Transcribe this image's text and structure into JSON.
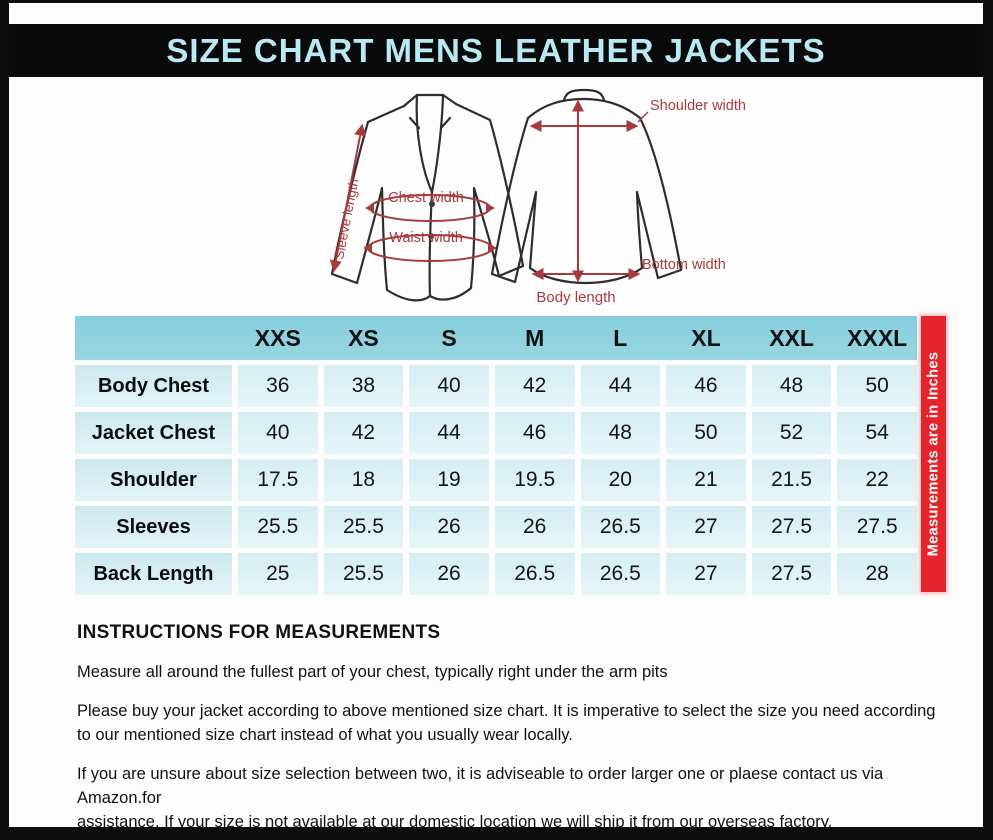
{
  "header": {
    "title": "SIZE CHART MENS LEATHER JACKETS"
  },
  "diagram": {
    "front": {
      "sleeve_label": "Sleeve length",
      "chest_label": "Chest width",
      "waist_label": "Waist width"
    },
    "back": {
      "shoulder_label": "Shoulder width",
      "bottom_label": "Bottom width",
      "body_label": "Body length"
    }
  },
  "chart_data": {
    "type": "table",
    "title": "SIZE CHART MENS LEATHER JACKETS",
    "columns": [
      "",
      "XXS",
      "XS",
      "S",
      "M",
      "L",
      "XL",
      "XXL",
      "XXXL"
    ],
    "rows": [
      {
        "label": "Body Chest",
        "values": [
          "36",
          "38",
          "40",
          "42",
          "44",
          "46",
          "48",
          "50"
        ]
      },
      {
        "label": "Jacket Chest",
        "values": [
          "40",
          "42",
          "44",
          "46",
          "48",
          "50",
          "52",
          "54"
        ]
      },
      {
        "label": "Shoulder",
        "values": [
          "17.5",
          "18",
          "19",
          "19.5",
          "20",
          "21",
          "21.5",
          "22"
        ]
      },
      {
        "label": "Sleeves",
        "values": [
          "25.5",
          "25.5",
          "26",
          "26",
          "26.5",
          "27",
          "27.5",
          "27.5"
        ]
      },
      {
        "label": "Back Length",
        "values": [
          "25",
          "25.5",
          "26",
          "26.5",
          "26.5",
          "27",
          "27.5",
          "28"
        ]
      }
    ],
    "note": "Measurements  are in Inches",
    "units": "inches"
  },
  "instructions": {
    "heading": "INSTRUCTIONS FOR MEASUREMENTS",
    "p1": "Measure all around the fullest part of your chest, typically right under the arm pits",
    "p2": "Please buy your jacket according to above mentioned size chart. It is imperative to select the size you need according\nto our mentioned size chart instead of what you  usually wear locally.",
    "p3": "If you are unsure about size selection between two, it is adviseable to order larger one or plaese contact us via Amazon.for\nassistance. If your size is not available at our domestic location we will ship it from our overseas factory."
  },
  "colors": {
    "title_bg": "#0a0a0a",
    "title_text": "#b9e9f2",
    "table_header_bg": "#8ccfdf",
    "table_cell_bg": "#dbeff4",
    "note_bar_bg": "#e6242b",
    "annotation_red": "#a73b3b",
    "outline": "#2e2e2e"
  }
}
